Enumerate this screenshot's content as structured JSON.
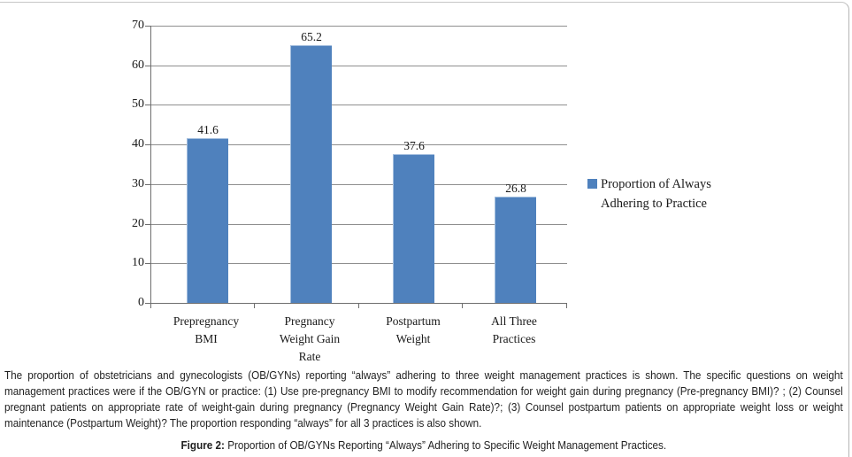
{
  "chart_data": {
    "type": "bar",
    "categories": [
      "Prepregnancy\nBMI",
      "Pregnancy\nWeight Gain\nRate",
      "Postpartum\nWeight",
      "All Three\nPractices"
    ],
    "values": [
      41.6,
      65.2,
      37.6,
      26.8
    ],
    "yticks": [
      70,
      60,
      50,
      40,
      30,
      20,
      10,
      0
    ],
    "ylim": [
      0,
      70
    ],
    "grid": "horizontal",
    "legend_position": "right",
    "legend_label": "Proportion of Always\nAdhering to Practice",
    "bar_color": "#4F81BD",
    "gridline_color": "#8f8f8f",
    "axis_color": "#6e6e6e"
  },
  "caption": {
    "body": "The proportion of obstetricians and gynecologists (OB/GYNs) reporting “always” adhering to three weight management practices is shown. The specific questions on weight management practices were if the OB/GYN or practice: (1) Use pre-pregnancy BMI to modify recommendation for weight gain during pregnancy (Pre-pregnancy BMI)? ; (2) Counsel pregnant patients on appropriate rate of weight-gain during pregnancy (Pregnancy Weight Gain Rate)?; (3) Counsel postpartum patients on appropriate weight loss or weight maintenance (Postpartum Weight)? The proportion responding “always” for all 3 practices is also shown.",
    "figure_label": "Figure 2:",
    "figure_text": " Proportion of OB/GYNs Reporting “Always” Adhering to Specific Weight Management Practices."
  }
}
